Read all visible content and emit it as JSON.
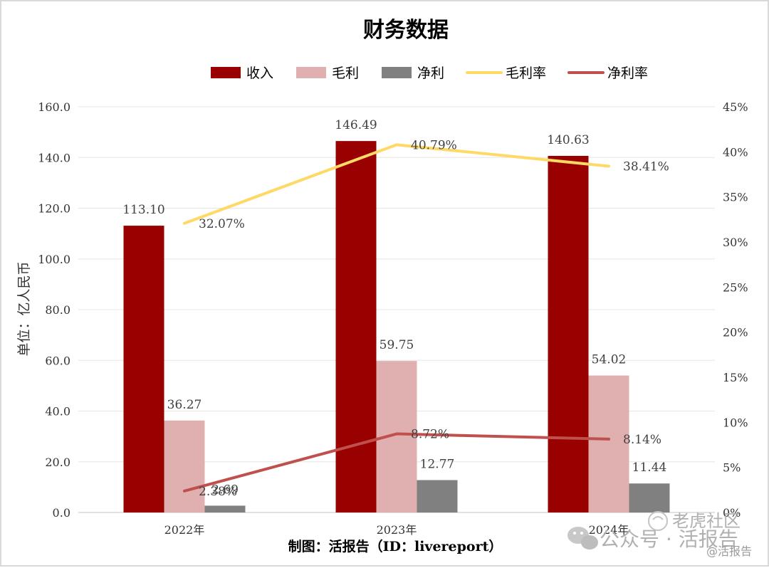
{
  "chart_data": {
    "type": "bar",
    "title": "财务数据",
    "ylabel": "单位：亿人民币",
    "categories": [
      "2022年",
      "2023年",
      "2024年"
    ],
    "ylim": [
      0,
      160
    ],
    "yticks": [
      "0.0",
      "20.0",
      "40.0",
      "60.0",
      "80.0",
      "100.0",
      "120.0",
      "140.0",
      "160.0"
    ],
    "y2lim": [
      0,
      45
    ],
    "y2ticks": [
      "0%",
      "5%",
      "10%",
      "15%",
      "20%",
      "25%",
      "30%",
      "35%",
      "40%",
      "45%"
    ],
    "grid": true,
    "legend_position": "top",
    "series": [
      {
        "name": "收入",
        "kind": "bar",
        "axis": "left",
        "color": "#990000",
        "values": [
          113.1,
          146.49,
          140.63
        ],
        "labels": [
          "113.10",
          "146.49",
          "140.63"
        ]
      },
      {
        "name": "毛利",
        "kind": "bar",
        "axis": "left",
        "color": "#e0b0b0",
        "values": [
          36.27,
          59.75,
          54.02
        ],
        "labels": [
          "36.27",
          "59.75",
          "54.02"
        ]
      },
      {
        "name": "净利",
        "kind": "bar",
        "axis": "left",
        "color": "#808080",
        "values": [
          2.69,
          12.77,
          11.44
        ],
        "labels": [
          "2.69",
          "12.77",
          "11.44"
        ]
      },
      {
        "name": "毛利率",
        "kind": "line",
        "axis": "right",
        "color": "#ffd966",
        "values": [
          32.07,
          40.79,
          38.41
        ],
        "labels": [
          "32.07%",
          "40.79%",
          "38.41%"
        ]
      },
      {
        "name": "净利率",
        "kind": "line",
        "axis": "right",
        "color": "#c0504d",
        "values": [
          2.38,
          8.72,
          8.14
        ],
        "labels": [
          "2.38%",
          "8.72%",
          "8.14%"
        ]
      }
    ]
  },
  "footer": "制图：活报告（ID：livereport）",
  "watermark": {
    "main": "公众号 · 活报告",
    "corner": "老虎社区",
    "handle": "@活报告"
  }
}
